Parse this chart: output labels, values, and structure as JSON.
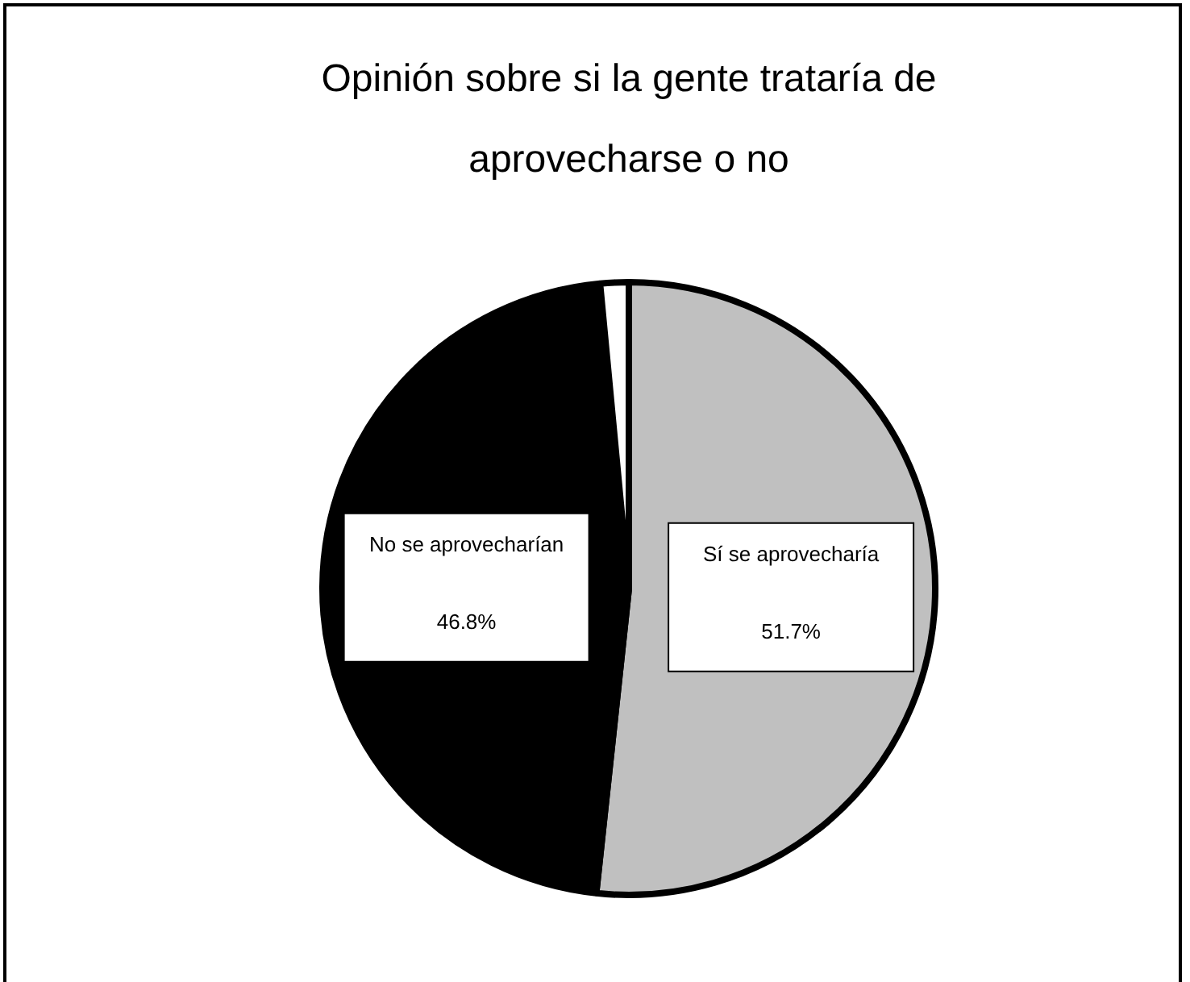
{
  "chart_data": {
    "type": "pie",
    "title": "Opinión sobre si la gente trataría de aprovecharse o no",
    "categories": [
      "Sí se aprovecharía",
      "No se aprovecharían",
      null
    ],
    "values": [
      51.7,
      46.8,
      1.5
    ],
    "colors": [
      "#c0c0c0",
      "#000000",
      "#ffffff"
    ],
    "value_labels": [
      "51.7%",
      "46.8%",
      null
    ],
    "legend": false
  }
}
